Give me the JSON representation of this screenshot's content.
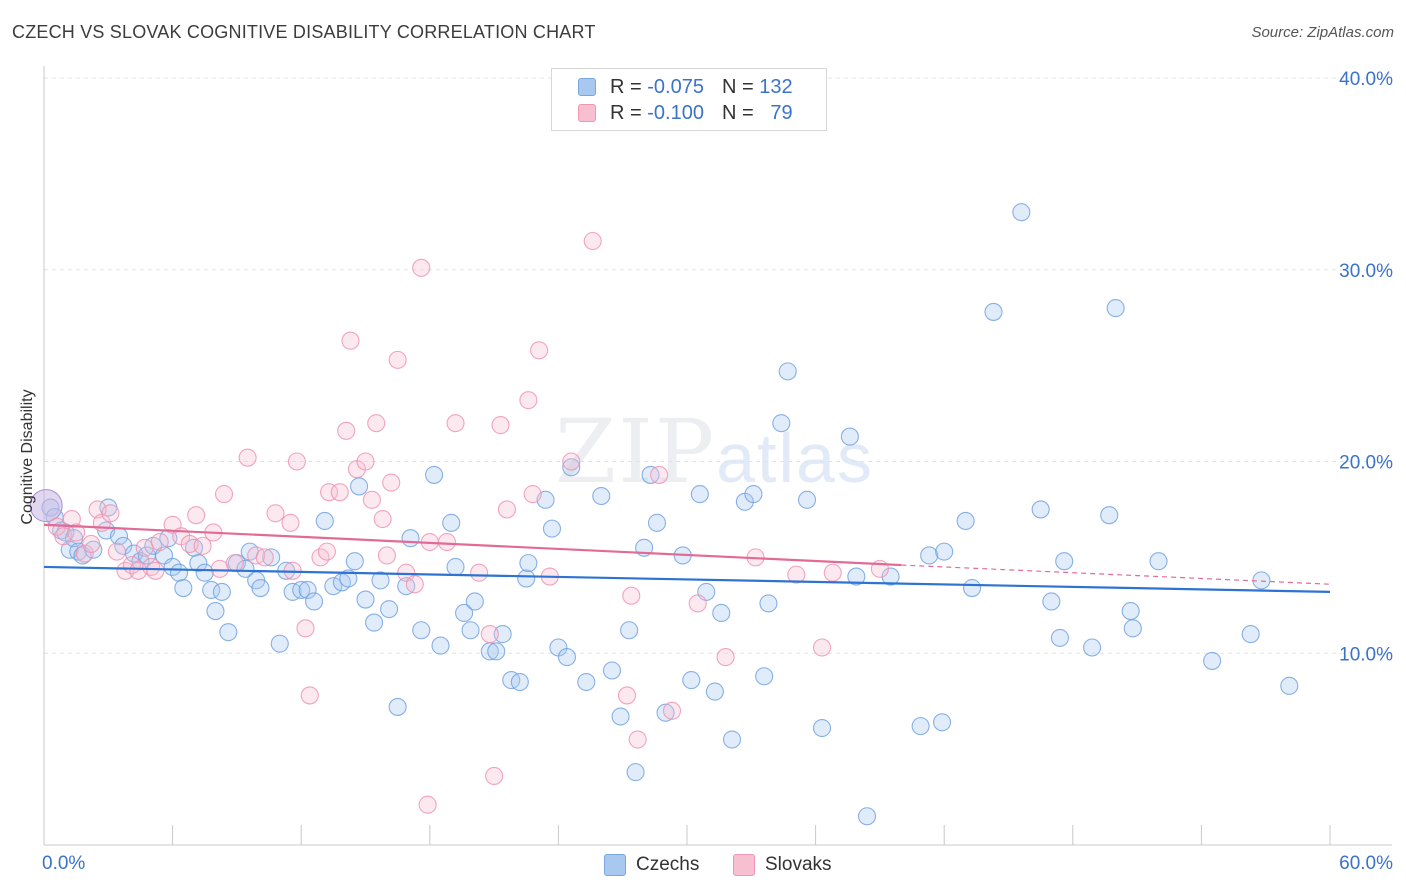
{
  "title": "CZECH VS SLOVAK COGNITIVE DISABILITY CORRELATION CHART",
  "source": "Source: ZipAtlas.com",
  "watermark": {
    "a": "ZIP",
    "b": "atlas"
  },
  "legend": {
    "rows": [
      {
        "r_label": "R =",
        "r_value": "-0.075",
        "n_label": "N =",
        "n_value": "132",
        "color": "#a9c8f0",
        "border": "#7aa6df"
      },
      {
        "r_label": "R =",
        "r_value": "-0.100",
        "n_label": "N =",
        "n_value": "79",
        "color": "#f7bfd0",
        "border": "#ee96b2"
      }
    ]
  },
  "bottom_legend": {
    "czechs": "Czechs",
    "slovaks": "Slovaks"
  },
  "colors": {
    "czech": "#6b9ee0",
    "slovak": "#ef8fae",
    "czech_line": "#2e73d1",
    "slovak_line": "#e26b96",
    "grid": "#e3e3e3",
    "axis_text": "#3a73c9"
  },
  "chart_data": {
    "type": "scatter",
    "title": "CZECH VS SLOVAK COGNITIVE DISABILITY CORRELATION CHART",
    "ylabel": "Cognitive Disability",
    "xlim": [
      0,
      60
    ],
    "ylim": [
      0,
      40
    ],
    "x_tick_labels": [
      "0.0%",
      "60.0%"
    ],
    "y_ticks": [
      10,
      20,
      30,
      40
    ],
    "y_tick_labels": [
      "10.0%",
      "20.0%",
      "30.0%",
      "40.0%"
    ],
    "grid": true,
    "series": [
      {
        "name": "Czechs",
        "trend": [
          [
            0,
            14.5
          ],
          [
            60,
            13.2
          ]
        ],
        "points": [
          [
            0.3,
            17.6
          ],
          [
            0.5,
            17.1
          ],
          [
            0.8,
            16.4
          ],
          [
            1.0,
            16.3
          ],
          [
            1.2,
            15.4
          ],
          [
            1.4,
            16.0
          ],
          [
            1.6,
            15.3
          ],
          [
            1.8,
            15.1
          ],
          [
            2.3,
            15.4
          ],
          [
            2.9,
            16.4
          ],
          [
            3.0,
            17.6
          ],
          [
            3.5,
            16.1
          ],
          [
            3.7,
            15.6
          ],
          [
            4.2,
            15.2
          ],
          [
            4.5,
            14.8
          ],
          [
            4.8,
            15.1
          ],
          [
            5.1,
            15.6
          ],
          [
            5.6,
            15.1
          ],
          [
            5.8,
            16.0
          ],
          [
            6.0,
            14.5
          ],
          [
            6.3,
            14.2
          ],
          [
            6.5,
            13.4
          ],
          [
            7.0,
            15.5
          ],
          [
            7.2,
            14.7
          ],
          [
            7.5,
            14.2
          ],
          [
            7.8,
            13.3
          ],
          [
            8.0,
            12.2
          ],
          [
            8.3,
            13.2
          ],
          [
            8.6,
            11.1
          ],
          [
            9.0,
            14.7
          ],
          [
            9.4,
            14.4
          ],
          [
            9.6,
            15.3
          ],
          [
            9.9,
            13.8
          ],
          [
            10.1,
            13.4
          ],
          [
            10.6,
            15.0
          ],
          [
            11.0,
            10.5
          ],
          [
            11.3,
            14.3
          ],
          [
            11.6,
            13.2
          ],
          [
            12.0,
            13.3
          ],
          [
            12.3,
            13.3
          ],
          [
            12.6,
            12.7
          ],
          [
            13.1,
            16.9
          ],
          [
            13.5,
            13.5
          ],
          [
            13.9,
            13.7
          ],
          [
            14.2,
            13.9
          ],
          [
            14.5,
            14.8
          ],
          [
            14.7,
            18.7
          ],
          [
            15.0,
            12.8
          ],
          [
            15.4,
            11.6
          ],
          [
            15.7,
            13.8
          ],
          [
            16.1,
            12.3
          ],
          [
            16.5,
            7.2
          ],
          [
            16.9,
            13.5
          ],
          [
            17.1,
            16.0
          ],
          [
            17.6,
            11.2
          ],
          [
            18.2,
            19.3
          ],
          [
            18.5,
            10.4
          ],
          [
            19.0,
            16.8
          ],
          [
            19.2,
            14.5
          ],
          [
            19.6,
            12.1
          ],
          [
            19.9,
            11.2
          ],
          [
            20.1,
            12.7
          ],
          [
            20.8,
            10.1
          ],
          [
            21.1,
            10.1
          ],
          [
            21.4,
            11.0
          ],
          [
            21.8,
            8.6
          ],
          [
            22.2,
            8.5
          ],
          [
            22.5,
            13.9
          ],
          [
            22.6,
            14.7
          ],
          [
            23.4,
            18.0
          ],
          [
            23.7,
            16.5
          ],
          [
            24.0,
            10.3
          ],
          [
            24.4,
            9.8
          ],
          [
            24.6,
            19.7
          ],
          [
            25.3,
            8.5
          ],
          [
            26.0,
            18.2
          ],
          [
            26.5,
            9.1
          ],
          [
            26.9,
            6.7
          ],
          [
            27.3,
            11.2
          ],
          [
            27.6,
            3.8
          ],
          [
            28.0,
            15.5
          ],
          [
            28.3,
            19.3
          ],
          [
            28.6,
            16.8
          ],
          [
            29.0,
            6.9
          ],
          [
            29.8,
            15.1
          ],
          [
            30.2,
            8.6
          ],
          [
            30.6,
            18.3
          ],
          [
            30.9,
            13.2
          ],
          [
            31.3,
            8.0
          ],
          [
            31.6,
            12.1
          ],
          [
            32.1,
            5.5
          ],
          [
            32.7,
            17.9
          ],
          [
            33.1,
            18.3
          ],
          [
            33.6,
            8.8
          ],
          [
            33.8,
            12.6
          ],
          [
            34.4,
            22.0
          ],
          [
            34.7,
            24.7
          ],
          [
            35.6,
            18.0
          ],
          [
            36.3,
            6.1
          ],
          [
            37.6,
            21.3
          ],
          [
            37.9,
            14.0
          ],
          [
            38.4,
            1.5
          ],
          [
            39.5,
            14.0
          ],
          [
            40.9,
            6.2
          ],
          [
            41.3,
            15.1
          ],
          [
            42.0,
            15.3
          ],
          [
            41.9,
            6.4
          ],
          [
            43.0,
            16.9
          ],
          [
            43.3,
            13.4
          ],
          [
            44.3,
            27.8
          ],
          [
            45.6,
            33.0
          ],
          [
            46.5,
            17.5
          ],
          [
            47.0,
            12.7
          ],
          [
            47.4,
            10.8
          ],
          [
            47.6,
            14.8
          ],
          [
            48.9,
            10.3
          ],
          [
            49.7,
            17.2
          ],
          [
            50.0,
            28.0
          ],
          [
            50.7,
            12.2
          ],
          [
            50.8,
            11.3
          ],
          [
            52.0,
            14.8
          ],
          [
            54.5,
            9.6
          ],
          [
            56.3,
            11.0
          ],
          [
            56.8,
            13.8
          ],
          [
            58.1,
            8.3
          ]
        ]
      },
      {
        "name": "Slovaks",
        "trend": [
          [
            0,
            16.7
          ],
          [
            40,
            14.6
          ]
        ],
        "trend_extension": [
          [
            40,
            14.6
          ],
          [
            60,
            13.6
          ]
        ],
        "points": [
          [
            0.6,
            16.6
          ],
          [
            0.9,
            16.1
          ],
          [
            1.3,
            17.0
          ],
          [
            1.5,
            16.3
          ],
          [
            1.9,
            15.2
          ],
          [
            2.2,
            15.7
          ],
          [
            2.5,
            17.5
          ],
          [
            2.7,
            16.8
          ],
          [
            3.1,
            17.3
          ],
          [
            3.4,
            15.3
          ],
          [
            3.8,
            14.3
          ],
          [
            4.1,
            14.6
          ],
          [
            4.4,
            14.3
          ],
          [
            4.7,
            15.5
          ],
          [
            5.0,
            14.5
          ],
          [
            5.4,
            15.8
          ],
          [
            6.0,
            16.7
          ],
          [
            6.4,
            16.1
          ],
          [
            6.8,
            15.7
          ],
          [
            7.1,
            17.2
          ],
          [
            7.4,
            15.6
          ],
          [
            7.9,
            16.3
          ],
          [
            8.2,
            14.4
          ],
          [
            8.4,
            18.3
          ],
          [
            8.9,
            14.7
          ],
          [
            9.5,
            20.2
          ],
          [
            9.9,
            15.1
          ],
          [
            10.3,
            15.0
          ],
          [
            10.8,
            17.3
          ],
          [
            11.5,
            16.8
          ],
          [
            11.8,
            20.0
          ],
          [
            12.2,
            11.3
          ],
          [
            12.4,
            7.8
          ],
          [
            12.9,
            15.0
          ],
          [
            13.3,
            18.4
          ],
          [
            13.8,
            18.4
          ],
          [
            14.1,
            21.6
          ],
          [
            14.3,
            26.3
          ],
          [
            14.6,
            19.6
          ],
          [
            15.0,
            20.0
          ],
          [
            15.3,
            18.0
          ],
          [
            15.5,
            22.0
          ],
          [
            15.8,
            17.0
          ],
          [
            16.0,
            15.1
          ],
          [
            16.2,
            18.9
          ],
          [
            16.5,
            25.3
          ],
          [
            16.9,
            14.2
          ],
          [
            17.3,
            13.6
          ],
          [
            17.6,
            30.1
          ],
          [
            17.9,
            2.1
          ],
          [
            18.8,
            15.8
          ],
          [
            19.2,
            22.0
          ],
          [
            20.3,
            14.2
          ],
          [
            20.8,
            11.0
          ],
          [
            21.0,
            3.6
          ],
          [
            21.3,
            21.9
          ],
          [
            21.6,
            17.5
          ],
          [
            22.6,
            23.2
          ],
          [
            22.8,
            18.3
          ],
          [
            23.1,
            25.8
          ],
          [
            23.6,
            14.0
          ],
          [
            24.6,
            20.0
          ],
          [
            25.6,
            31.5
          ],
          [
            27.2,
            7.8
          ],
          [
            27.4,
            13.0
          ],
          [
            27.7,
            5.5
          ],
          [
            28.7,
            19.3
          ],
          [
            29.3,
            7.0
          ],
          [
            30.5,
            12.6
          ],
          [
            31.8,
            9.8
          ],
          [
            33.2,
            15.0
          ],
          [
            35.1,
            14.1
          ],
          [
            36.3,
            10.3
          ],
          [
            39.0,
            14.4
          ],
          [
            36.8,
            14.2
          ],
          [
            13.2,
            15.3
          ],
          [
            11.6,
            14.3
          ],
          [
            18.0,
            15.8
          ],
          [
            5.2,
            14.3
          ]
        ]
      }
    ]
  }
}
